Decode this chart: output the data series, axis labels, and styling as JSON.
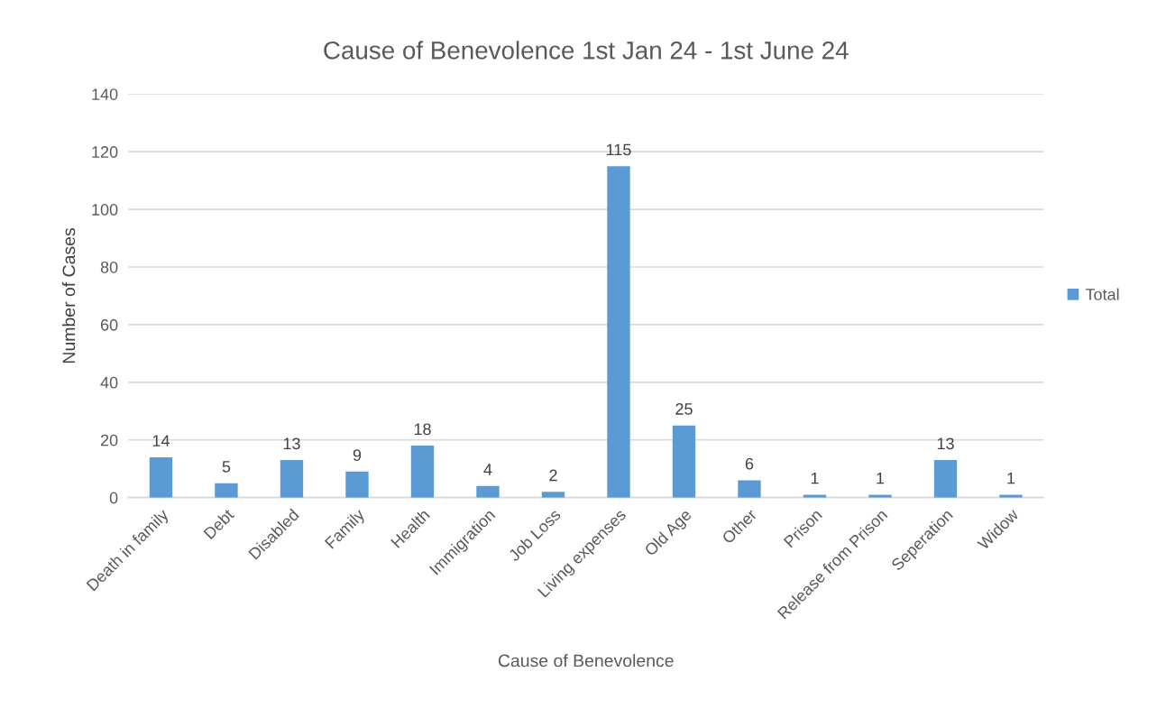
{
  "chart_data": {
    "type": "bar",
    "title": "Cause of Benevolence 1st Jan 24 - 1st June 24",
    "xlabel": "Cause of Benevolence",
    "ylabel": "Number of Cases",
    "categories": [
      "Death in family",
      "Debt",
      "Disabled",
      "Family",
      "Health",
      "Immigration",
      "Job Loss",
      "Living expenses",
      "Old Age",
      "Other",
      "Prison",
      "Release from Prison",
      "Seperation",
      "Widow"
    ],
    "series": [
      {
        "name": "Total",
        "color": "#5b9bd5",
        "values": [
          14,
          5,
          13,
          9,
          18,
          4,
          2,
          115,
          25,
          6,
          1,
          1,
          13,
          1
        ]
      }
    ],
    "ylim": [
      0,
      140
    ],
    "yticks": [
      0,
      20,
      40,
      60,
      80,
      100,
      120,
      140
    ],
    "grid": "y",
    "legend": "right",
    "data_labels": true
  }
}
